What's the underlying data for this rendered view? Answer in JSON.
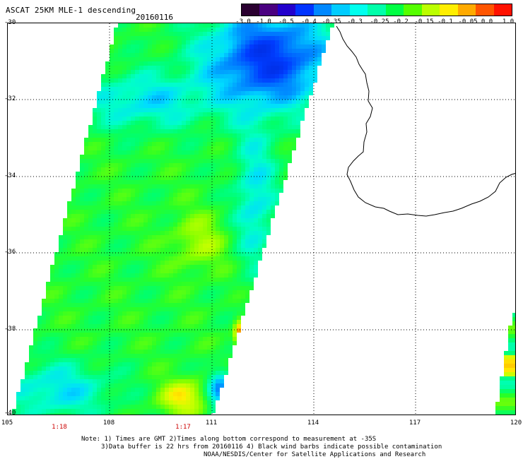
{
  "header": {
    "title": "ASCAT 25KM MLE-1 descending",
    "date": "20160116"
  },
  "colorbar": {
    "labels": [
      "-3.0",
      "-1.0",
      "-0.5",
      "-0.4",
      "-0.35",
      "-0.3",
      "-0.25",
      "-0.2",
      "-0.15",
      "-0.1",
      "-0.05",
      "0.0",
      "1.0"
    ],
    "colors": [
      "#2a0030",
      "#4a0080",
      "#2200cc",
      "#0033ff",
      "#0088ff",
      "#00ccff",
      "#00ffee",
      "#00ffaa",
      "#00ff44",
      "#55ff00",
      "#bbff00",
      "#ffee00",
      "#ffaa00",
      "#ff5500",
      "#ff1100"
    ]
  },
  "map": {
    "lat_labels": [
      "-30",
      "-32",
      "-34",
      "-36",
      "-38",
      "-40"
    ],
    "lon_labels": [
      "105",
      "108",
      "111",
      "114",
      "117",
      "120"
    ],
    "time_labels": [
      "1:18",
      "1:17"
    ]
  },
  "notes": {
    "line1": "Note: 1) Times are GMT 2)Times along bottom correspond to measurement at -35S",
    "line2": "3)Data buffer is 22 hrs from 20160116 4) Black wind barbs indicate possible contamination",
    "line3": "NOAA/NESDIS/Center for Satellite Applications and Research"
  }
}
